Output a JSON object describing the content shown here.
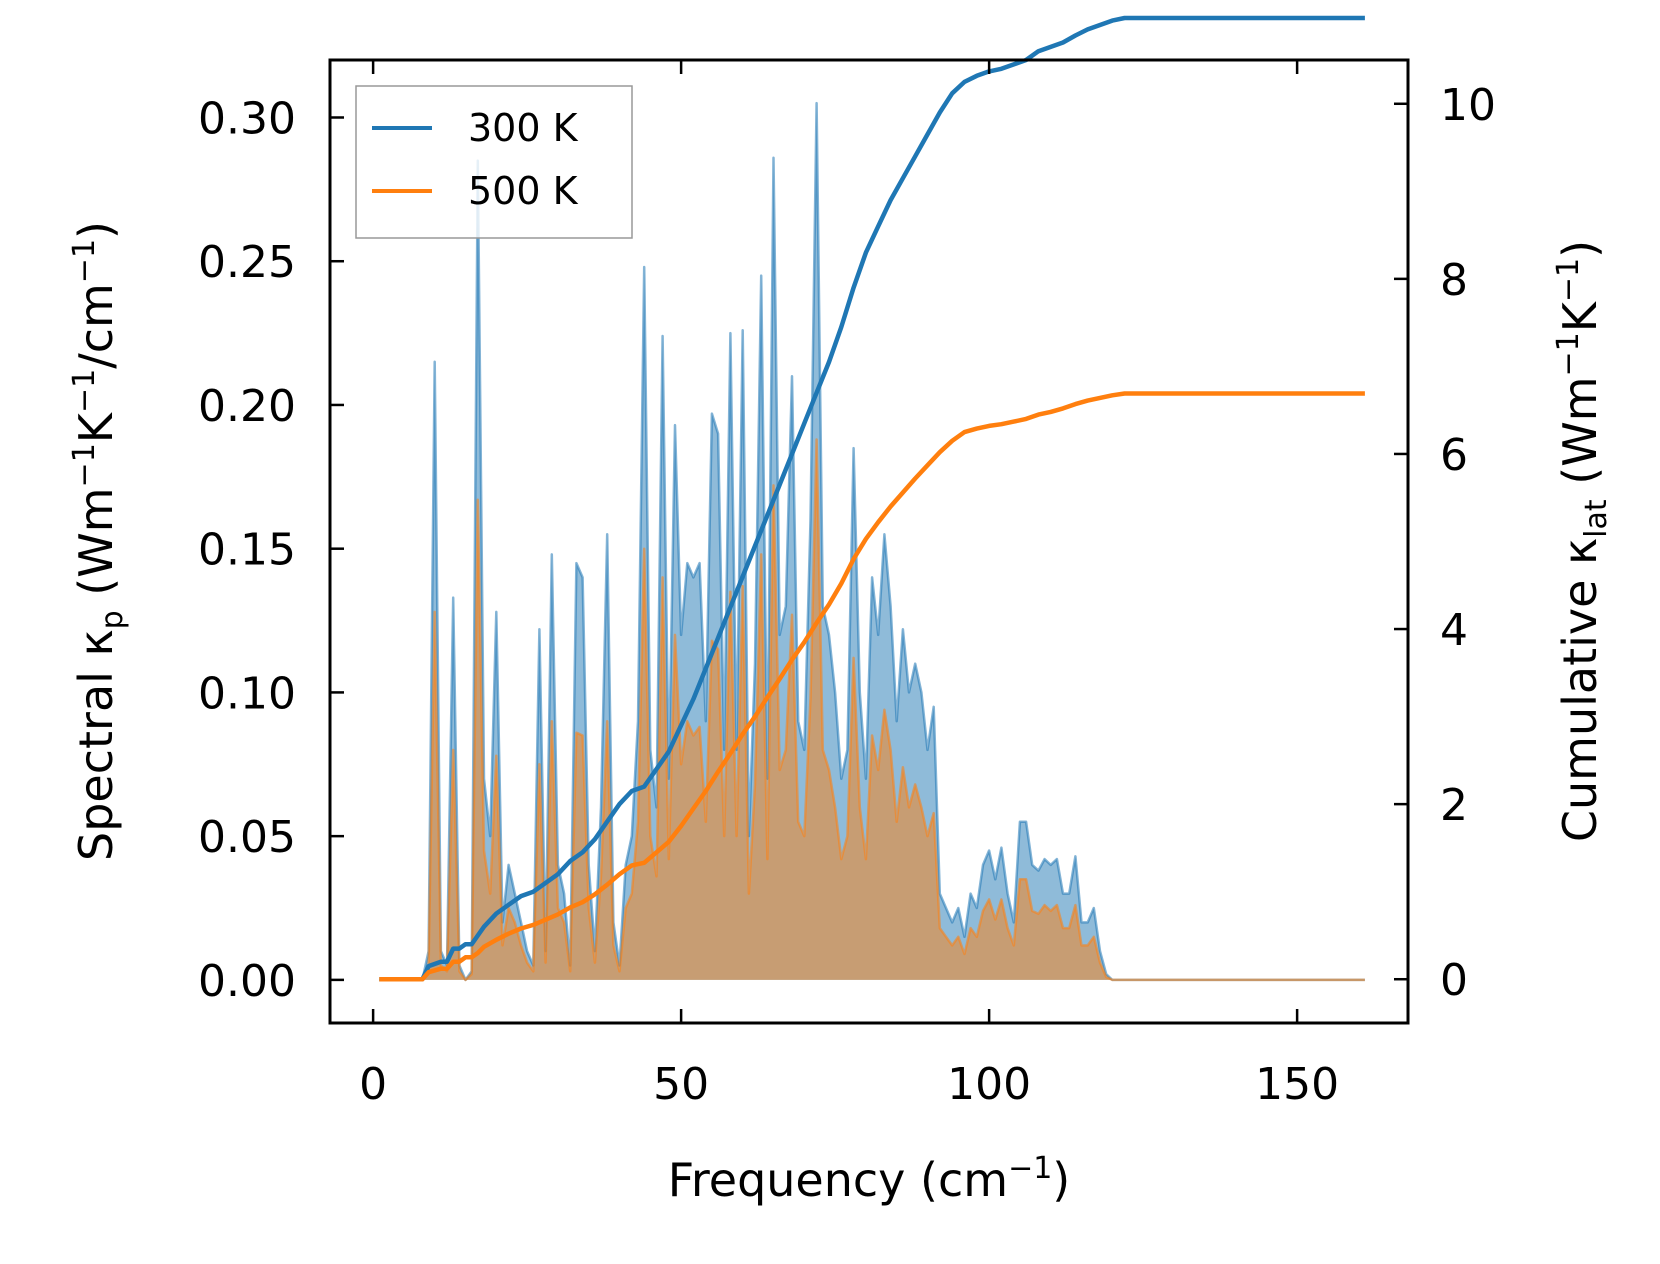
{
  "chart_data": {
    "type": "line",
    "xlabel": "Frequency (cm⁻¹)",
    "ylabel_left": "Spectral κₚ (Wm⁻¹K⁻¹/cm⁻¹)",
    "ylabel_right": "Cumulative κₗₐₜ (Wm⁻¹K⁻¹)",
    "xlim": [
      -7,
      168
    ],
    "ylim_left": [
      -0.015,
      0.32
    ],
    "ylim_right": [
      -0.5,
      10.5
    ],
    "xticks": [
      0,
      50,
      100,
      150
    ],
    "xtick_labels": [
      "0",
      "50",
      "100",
      "150"
    ],
    "yticks_left": [
      0,
      0.05,
      0.1,
      0.15,
      0.2,
      0.25,
      0.3
    ],
    "ytick_labels_left": [
      "0.00",
      "0.05",
      "0.10",
      "0.15",
      "0.20",
      "0.25",
      "0.30"
    ],
    "yticks_right": [
      0,
      2,
      4,
      6,
      8,
      10
    ],
    "ytick_labels_right": [
      "0",
      "2",
      "4",
      "6",
      "8",
      "10"
    ],
    "legend": {
      "position": "top-left",
      "entries": [
        "300 K",
        "500 K"
      ]
    },
    "series": [
      {
        "name": "300 K",
        "color": "#1f77b4",
        "spectral_x": [
          1,
          8,
          9,
          10,
          11,
          12,
          13,
          14,
          15,
          16,
          17,
          18,
          19,
          20,
          21,
          22,
          23,
          24,
          25,
          26,
          27,
          28,
          29,
          30,
          31,
          32,
          33,
          34,
          35,
          36,
          37,
          38,
          39,
          40,
          41,
          42,
          43,
          44,
          45,
          46,
          47,
          48,
          49,
          50,
          51,
          52,
          53,
          54,
          55,
          56,
          57,
          58,
          59,
          60,
          61,
          62,
          63,
          64,
          65,
          66,
          67,
          68,
          69,
          70,
          71,
          72,
          73,
          74,
          75,
          76,
          77,
          78,
          79,
          80,
          81,
          82,
          83,
          84,
          85,
          86,
          87,
          88,
          89,
          90,
          91,
          92,
          93,
          94,
          95,
          96,
          97,
          98,
          99,
          100,
          101,
          102,
          103,
          104,
          105,
          106,
          107,
          108,
          109,
          110,
          111,
          112,
          113,
          114,
          115,
          116,
          117,
          118,
          119,
          120,
          121,
          122,
          123,
          124,
          125,
          126,
          161
        ],
        "spectral_y": [
          0,
          0,
          0.01,
          0.215,
          0.01,
          0.005,
          0.133,
          0.005,
          0,
          0.003,
          0.285,
          0.07,
          0.05,
          0.128,
          0.02,
          0.04,
          0.03,
          0.02,
          0.01,
          0.005,
          0.122,
          0.01,
          0.148,
          0.04,
          0.03,
          0.005,
          0.145,
          0.14,
          0.04,
          0.01,
          0.06,
          0.155,
          0.02,
          0.005,
          0.04,
          0.05,
          0.09,
          0.248,
          0.08,
          0.06,
          0.224,
          0.07,
          0.193,
          0.12,
          0.145,
          0.14,
          0.145,
          0.09,
          0.197,
          0.19,
          0.08,
          0.225,
          0.08,
          0.226,
          0.05,
          0.11,
          0.245,
          0.07,
          0.286,
          0.12,
          0.13,
          0.21,
          0.09,
          0.08,
          0.16,
          0.305,
          0.13,
          0.12,
          0.1,
          0.07,
          0.08,
          0.185,
          0.1,
          0.07,
          0.14,
          0.12,
          0.155,
          0.13,
          0.09,
          0.122,
          0.1,
          0.11,
          0.1,
          0.08,
          0.095,
          0.03,
          0.025,
          0.02,
          0.025,
          0.015,
          0.03,
          0.025,
          0.04,
          0.045,
          0.035,
          0.046,
          0.03,
          0.02,
          0.055,
          0.055,
          0.04,
          0.038,
          0.042,
          0.04,
          0.042,
          0.03,
          0.03,
          0.043,
          0.02,
          0.02,
          0.025,
          0.01,
          0.002,
          0,
          0,
          0,
          0,
          0,
          0,
          0,
          0
        ],
        "cumulative_x": [
          1,
          8,
          9,
          11,
          12,
          13,
          14,
          15,
          16,
          17,
          18,
          20,
          22,
          24,
          26,
          28,
          30,
          32,
          34,
          36,
          38,
          40,
          42,
          44,
          46,
          48,
          50,
          52,
          54,
          56,
          58,
          60,
          62,
          64,
          66,
          68,
          70,
          72,
          74,
          76,
          78,
          80,
          82,
          84,
          86,
          88,
          90,
          92,
          94,
          96,
          98,
          100,
          102,
          104,
          106,
          108,
          110,
          112,
          114,
          116,
          118,
          120,
          122,
          124,
          161
        ],
        "cumulative_y": [
          0,
          0,
          0.15,
          0.2,
          0.2,
          0.35,
          0.35,
          0.4,
          0.4,
          0.5,
          0.6,
          0.75,
          0.85,
          0.95,
          1.0,
          1.1,
          1.2,
          1.35,
          1.45,
          1.6,
          1.8,
          2.0,
          2.15,
          2.2,
          2.4,
          2.6,
          2.9,
          3.2,
          3.55,
          3.9,
          4.25,
          4.6,
          4.95,
          5.3,
          5.65,
          6.0,
          6.35,
          6.7,
          7.05,
          7.45,
          7.9,
          8.3,
          8.6,
          8.9,
          9.15,
          9.4,
          9.65,
          9.9,
          10.12,
          10.25,
          10.32,
          10.37,
          10.4,
          10.45,
          10.5,
          10.6,
          10.65,
          10.7,
          10.78,
          10.85,
          10.9,
          10.95,
          10.98,
          10.98,
          10.98
        ]
      },
      {
        "name": "500 K",
        "color": "#ff7f0e",
        "spectral_x": [
          1,
          8,
          9,
          10,
          11,
          12,
          13,
          14,
          15,
          16,
          17,
          18,
          19,
          20,
          21,
          22,
          23,
          24,
          25,
          26,
          27,
          28,
          29,
          30,
          31,
          32,
          33,
          34,
          35,
          36,
          37,
          38,
          39,
          40,
          41,
          42,
          43,
          44,
          45,
          46,
          47,
          48,
          49,
          50,
          51,
          52,
          53,
          54,
          55,
          56,
          57,
          58,
          59,
          60,
          61,
          62,
          63,
          64,
          65,
          66,
          67,
          68,
          69,
          70,
          71,
          72,
          73,
          74,
          75,
          76,
          77,
          78,
          79,
          80,
          81,
          82,
          83,
          84,
          85,
          86,
          87,
          88,
          89,
          90,
          91,
          92,
          93,
          94,
          95,
          96,
          97,
          98,
          99,
          100,
          101,
          102,
          103,
          104,
          105,
          106,
          107,
          108,
          109,
          110,
          111,
          112,
          113,
          114,
          115,
          116,
          117,
          118,
          119,
          120,
          121,
          122,
          123,
          124,
          125,
          126,
          161
        ],
        "spectral_y": [
          0,
          0,
          0.005,
          0.128,
          0.005,
          0.003,
          0.08,
          0.003,
          0,
          0.002,
          0.167,
          0.045,
          0.03,
          0.078,
          0.012,
          0.025,
          0.02,
          0.012,
          0.006,
          0.003,
          0.075,
          0.006,
          0.09,
          0.025,
          0.02,
          0.003,
          0.086,
          0.085,
          0.025,
          0.006,
          0.036,
          0.09,
          0.012,
          0.003,
          0.025,
          0.03,
          0.055,
          0.15,
          0.05,
          0.036,
          0.14,
          0.042,
          0.12,
          0.075,
          0.09,
          0.085,
          0.088,
          0.055,
          0.118,
          0.115,
          0.05,
          0.135,
          0.05,
          0.137,
          0.03,
          0.068,
          0.148,
          0.042,
          0.172,
          0.073,
          0.08,
          0.127,
          0.055,
          0.05,
          0.098,
          0.188,
          0.08,
          0.073,
          0.06,
          0.042,
          0.05,
          0.112,
          0.06,
          0.042,
          0.085,
          0.073,
          0.094,
          0.08,
          0.055,
          0.074,
          0.06,
          0.068,
          0.06,
          0.05,
          0.058,
          0.018,
          0.015,
          0.012,
          0.015,
          0.009,
          0.018,
          0.015,
          0.024,
          0.028,
          0.021,
          0.028,
          0.018,
          0.012,
          0.035,
          0.035,
          0.024,
          0.023,
          0.026,
          0.024,
          0.026,
          0.018,
          0.018,
          0.026,
          0.012,
          0.012,
          0.015,
          0.006,
          0.001,
          0,
          0,
          0,
          0,
          0,
          0,
          0,
          0
        ],
        "cumulative_x": [
          1,
          8,
          9,
          11,
          12,
          13,
          14,
          15,
          16,
          17,
          18,
          20,
          22,
          24,
          26,
          28,
          30,
          32,
          34,
          36,
          38,
          40,
          42,
          44,
          46,
          48,
          50,
          52,
          54,
          56,
          58,
          60,
          62,
          64,
          66,
          68,
          70,
          72,
          74,
          76,
          78,
          80,
          82,
          84,
          86,
          88,
          90,
          92,
          94,
          96,
          98,
          100,
          102,
          104,
          106,
          108,
          110,
          112,
          114,
          116,
          118,
          120,
          122,
          124,
          161
        ],
        "cumulative_y": [
          0,
          0,
          0.08,
          0.12,
          0.12,
          0.2,
          0.2,
          0.25,
          0.25,
          0.3,
          0.37,
          0.45,
          0.52,
          0.58,
          0.62,
          0.68,
          0.74,
          0.82,
          0.88,
          0.97,
          1.08,
          1.2,
          1.3,
          1.33,
          1.45,
          1.57,
          1.75,
          1.95,
          2.15,
          2.37,
          2.58,
          2.8,
          3.0,
          3.22,
          3.43,
          3.65,
          3.85,
          4.07,
          4.28,
          4.52,
          4.8,
          5.03,
          5.22,
          5.4,
          5.56,
          5.72,
          5.87,
          6.02,
          6.15,
          6.25,
          6.29,
          6.32,
          6.34,
          6.37,
          6.4,
          6.45,
          6.48,
          6.52,
          6.57,
          6.61,
          6.64,
          6.67,
          6.69,
          6.69,
          6.69
        ]
      }
    ]
  }
}
